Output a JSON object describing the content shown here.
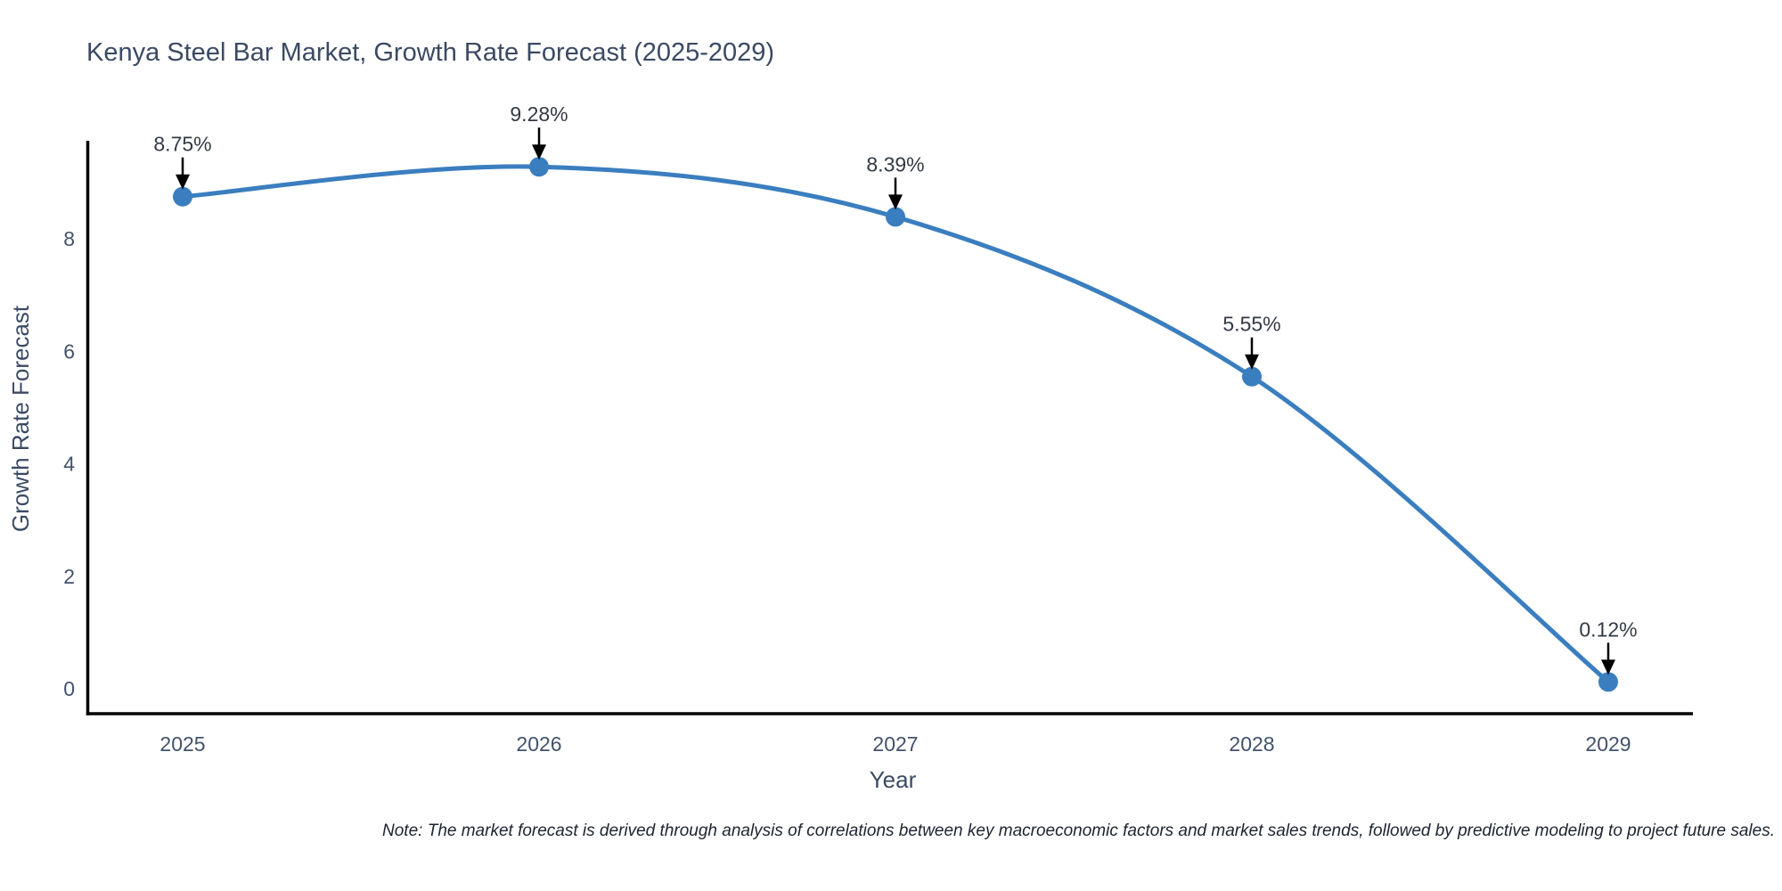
{
  "note": "Note: The market forecast is derived through analysis of correlations between key macroeconomic factors and market sales trends, followed by predictive modeling to project future sales.",
  "chart_data": {
    "type": "line",
    "title": "Kenya Steel Bar Market, Growth Rate Forecast (2025-2029)",
    "xlabel": "Year",
    "ylabel": "Growth Rate Forecast",
    "x": [
      "2025",
      "2026",
      "2027",
      "2028",
      "2029"
    ],
    "values": [
      8.75,
      9.28,
      8.39,
      5.55,
      0.12
    ],
    "point_labels": [
      "8.75%",
      "9.28%",
      "8.39%",
      "5.55%",
      "0.12%"
    ],
    "y_ticks": [
      0,
      2,
      4,
      6,
      8
    ],
    "ylim": [
      0,
      10.2
    ],
    "grid": false,
    "legend": null,
    "line_shape": "spline",
    "annotation_style": "label-with-down-arrow",
    "colors": {
      "line": "#3a7ebf",
      "marker": "#3a7ebf",
      "axis": "#000000",
      "title_text": "#3b4a63",
      "tick_text": "#42526b",
      "annotation_text": "#333a45",
      "arrow": "#000000",
      "background": "#ffffff"
    }
  }
}
